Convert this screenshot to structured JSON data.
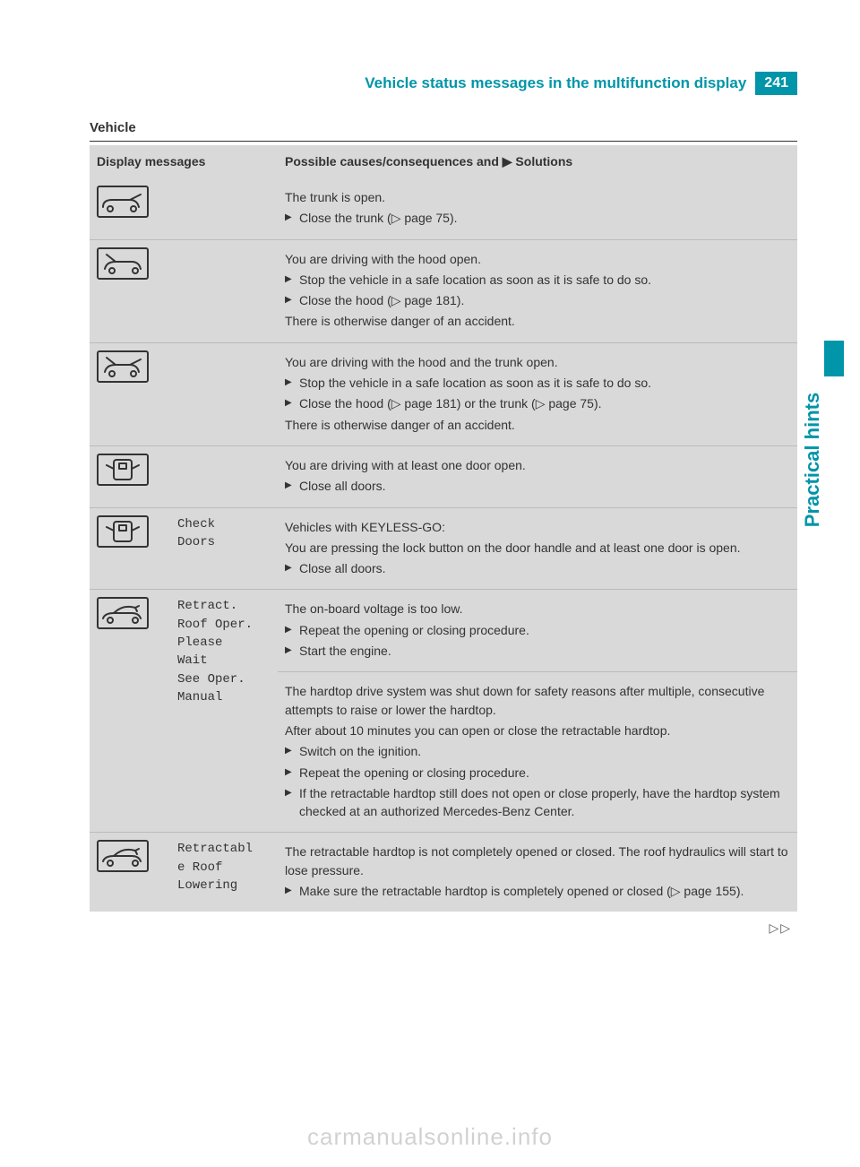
{
  "header": {
    "title": "Vehicle status messages in the multifunction display",
    "page_number": "241"
  },
  "side_tab": "Practical hints",
  "section_title": "Vehicle",
  "table": {
    "col1_header": "Display messages",
    "col2_header": "Possible causes/consequences and ▶ Solutions",
    "rows": [
      {
        "icon": "trunk",
        "message": "",
        "body": [
          {
            "t": "p",
            "v": "The trunk is open."
          },
          {
            "t": "li",
            "v": "Close the trunk (▷ page 75)."
          }
        ]
      },
      {
        "icon": "hood",
        "message": "",
        "body": [
          {
            "t": "p",
            "v": "You are driving with the hood open."
          },
          {
            "t": "li",
            "v": "Stop the vehicle in a safe location as soon as it is safe to do so."
          },
          {
            "t": "li",
            "v": "Close the hood (▷ page 181)."
          },
          {
            "t": "p",
            "v": "There is otherwise danger of an accident."
          }
        ]
      },
      {
        "icon": "hood_trunk",
        "message": "",
        "body": [
          {
            "t": "p",
            "v": "You are driving with the hood and the trunk open."
          },
          {
            "t": "li",
            "v": "Stop the vehicle in a safe location as soon as it is safe to do so."
          },
          {
            "t": "li",
            "v": "Close the hood (▷ page 181) or the trunk (▷ page 75)."
          },
          {
            "t": "p",
            "v": "There is otherwise danger of an accident."
          }
        ]
      },
      {
        "icon": "door",
        "message": "",
        "body": [
          {
            "t": "p",
            "v": "You are driving with at least one door open."
          },
          {
            "t": "li",
            "v": "Close all doors."
          }
        ]
      },
      {
        "icon": "door",
        "message": "Check\nDoors",
        "body": [
          {
            "t": "p",
            "v": "Vehicles with KEYLESS-GO:"
          },
          {
            "t": "p",
            "v": "You are pressing the lock button on the door handle and at least one door is open."
          },
          {
            "t": "li",
            "v": "Close all doors."
          }
        ]
      },
      {
        "icon": "roof",
        "message": "Retract.\nRoof Oper.\nPlease\nWait\nSee Oper.\nManual",
        "body_multi": [
          [
            {
              "t": "p",
              "v": "The on-board voltage is too low."
            },
            {
              "t": "li",
              "v": "Repeat the opening or closing procedure."
            },
            {
              "t": "li",
              "v": "Start the engine."
            }
          ],
          [
            {
              "t": "p",
              "v": "The hardtop drive system was shut down for safety reasons after multiple, consecutive attempts to raise or lower the hardtop."
            },
            {
              "t": "p",
              "v": "After about 10 minutes you can open or close the retractable hardtop."
            },
            {
              "t": "li",
              "v": "Switch on the ignition."
            },
            {
              "t": "li",
              "v": "Repeat the opening or closing procedure."
            },
            {
              "t": "li",
              "v": "If the retractable hardtop still does not open or close properly, have the hardtop system checked at an authorized Mercedes-Benz Center."
            }
          ]
        ]
      },
      {
        "icon": "roof",
        "message": "Retractabl\ne Roof\nLowering",
        "body": [
          {
            "t": "p",
            "v": "The retractable hardtop is not completely opened or closed. The roof hydraulics will start to lose pressure."
          },
          {
            "t": "li",
            "v": "Make sure the retractable hardtop is completely opened or closed (▷ page 155)."
          }
        ]
      }
    ]
  },
  "continue_marker": "▷▷",
  "watermark": "carmanualsonline.info",
  "colors": {
    "accent": "#0095a8",
    "table_bg": "#d9d9d9",
    "text": "#333333"
  }
}
